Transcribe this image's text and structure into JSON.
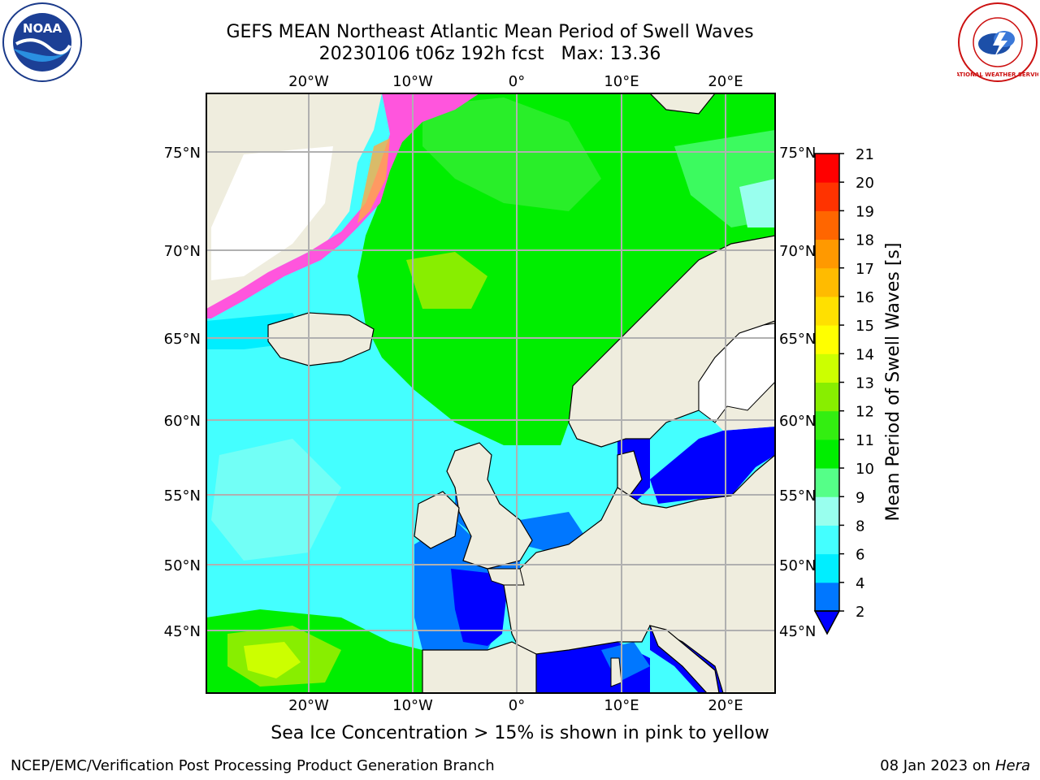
{
  "header": {
    "title_line1": "GEFS MEAN Northeast Atlantic Mean Period of Swell Waves",
    "title_line2": "20230106 t06z 192h fcst   Max: 13.36"
  },
  "logos": {
    "left": {
      "text": "NOAA",
      "icon": "noaa-logo"
    },
    "right": {
      "text": "NATIONAL WEATHER SERVICE",
      "icon": "nws-logo"
    }
  },
  "map": {
    "lon_labels": [
      "20°W",
      "10°W",
      "0°",
      "10°E",
      "20°E"
    ],
    "lat_labels": [
      "75°N",
      "70°N",
      "65°N",
      "60°N",
      "55°N",
      "50°N",
      "45°N"
    ]
  },
  "colorbar": {
    "label": "Mean Period of Swell Waves [s]",
    "ticks": [
      "2",
      "4",
      "6",
      "8",
      "9",
      "10",
      "11",
      "12",
      "13",
      "14",
      "15",
      "16",
      "17",
      "18",
      "19",
      "20",
      "21"
    ],
    "colors": [
      "#0000ff",
      "#0077ff",
      "#00eeff",
      "#44ffff",
      "#99ffee",
      "#55ff88",
      "#00ee00",
      "#33ee11",
      "#88ee00",
      "#ccff00",
      "#ffff00",
      "#ffe000",
      "#ffbb00",
      "#ff9900",
      "#ff6600",
      "#ff3300",
      "#ff0000"
    ]
  },
  "note": "Sea Ice Concentration > 15% is shown in pink to yellow",
  "footer": {
    "left": "NCEP/EMC/Verification Post Processing Product Generation Branch",
    "right_date": "08 Jan 2023 on ",
    "right_host": "Hera"
  }
}
